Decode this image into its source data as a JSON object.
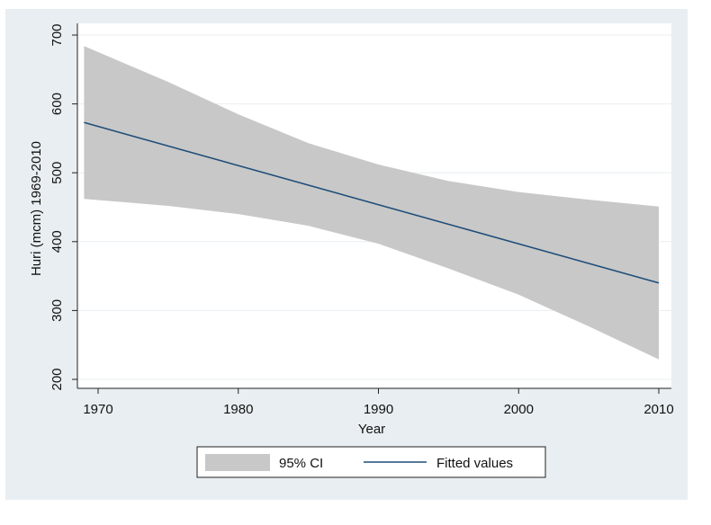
{
  "chart_data": {
    "type": "line",
    "title": "",
    "xlabel": "Year",
    "ylabel": "Huri (mcm) 1969-2010",
    "xlim": [
      1969,
      2010
    ],
    "ylim": [
      200,
      700
    ],
    "x_ticks": [
      "1970",
      "1980",
      "1990",
      "2000",
      "2010"
    ],
    "y_ticks": [
      "200",
      "300",
      "400",
      "500",
      "600",
      "700"
    ],
    "grid": true,
    "legend_position": "bottom",
    "series": [
      {
        "name": "95% CI",
        "kind": "band",
        "x": [
          1969,
          1975,
          1980,
          1985,
          1990,
          1995,
          2000,
          2005,
          2010
        ],
        "upper": [
          684,
          632,
          585,
          543,
          512,
          488,
          472,
          461,
          451
        ],
        "lower": [
          462,
          452,
          440,
          423,
          397,
          361,
          323,
          277,
          229
        ],
        "color": "#c8c8c8"
      },
      {
        "name": "Fitted values",
        "kind": "line",
        "x": [
          1969,
          2010
        ],
        "y": [
          573,
          340
        ],
        "color": "#1f4e79"
      }
    ]
  },
  "colors": {
    "background": "#e8eef1",
    "plot_background": "#ffffff",
    "grid": "#e8eef1",
    "band": "#c8c8c8",
    "fitted": "#1f4e79"
  }
}
